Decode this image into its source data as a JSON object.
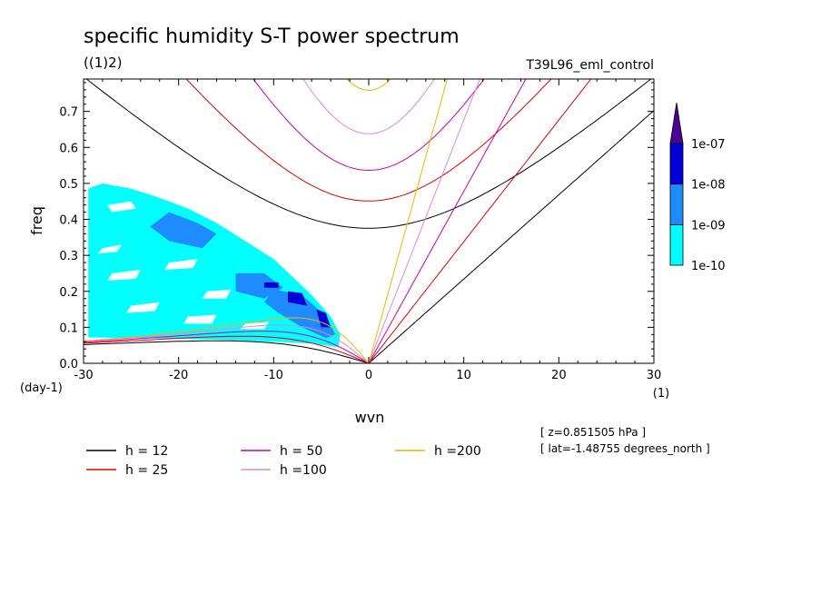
{
  "chart_data": {
    "type": "heatmap",
    "title": "specific humidity S-T power spectrum",
    "subtitle_left": "((1)2)",
    "subtitle_right": "T39L96_eml_control",
    "xlabel": "wvn",
    "ylabel": "freq",
    "x_unit": "(1)",
    "y_unit": "(day-1)",
    "xlim": [
      -30,
      30
    ],
    "ylim": [
      0,
      0.79
    ],
    "xticks": [
      -30,
      -20,
      -10,
      0,
      10,
      20,
      30
    ],
    "yticks": [
      0.0,
      0.1,
      0.2,
      0.3,
      0.4,
      0.5,
      0.6,
      0.7
    ],
    "xtick_labels": [
      "-30",
      "-20",
      "-10",
      "0",
      "10",
      "20",
      "30"
    ],
    "ytick_labels": [
      "0.0",
      "0.1",
      "0.2",
      "0.3",
      "0.4",
      "0.5",
      "0.6",
      "0.7"
    ],
    "colorbar": {
      "levels": [
        1e-10,
        1e-09,
        1e-08,
        1e-07
      ],
      "labels": [
        "1e-10",
        "1e-09",
        "1e-08",
        "1e-07"
      ],
      "colors": [
        "#00ffff",
        "#1e8cff",
        "#0000d8",
        "#4b0096"
      ]
    },
    "spectrum_regions": [
      {
        "level": 0,
        "polygon": [
          [
            -29.5,
            0.485
          ],
          [
            -28,
            0.5
          ],
          [
            -25,
            0.485
          ],
          [
            -22,
            0.46
          ],
          [
            -19,
            0.43
          ],
          [
            -16,
            0.39
          ],
          [
            -13,
            0.34
          ],
          [
            -10,
            0.29
          ],
          [
            -8,
            0.24
          ],
          [
            -6,
            0.19
          ],
          [
            -4,
            0.13
          ],
          [
            -3,
            0.08
          ],
          [
            -3.2,
            0.045
          ],
          [
            -6,
            0.055
          ],
          [
            -10,
            0.06
          ],
          [
            -15,
            0.065
          ],
          [
            -20,
            0.068
          ],
          [
            -25,
            0.07
          ],
          [
            -29.5,
            0.072
          ]
        ]
      },
      {
        "level": 1,
        "polygon": [
          [
            -21,
            0.42
          ],
          [
            -18,
            0.39
          ],
          [
            -16,
            0.36
          ],
          [
            -17.5,
            0.32
          ],
          [
            -21,
            0.34
          ],
          [
            -23,
            0.38
          ]
        ]
      },
      {
        "level": 1,
        "polygon": [
          [
            -14,
            0.25
          ],
          [
            -11,
            0.25
          ],
          [
            -9,
            0.21
          ],
          [
            -11,
            0.18
          ],
          [
            -14,
            0.2
          ]
        ]
      },
      {
        "level": 1,
        "polygon": [
          [
            -10,
            0.205
          ],
          [
            -7,
            0.19
          ],
          [
            -4.5,
            0.13
          ],
          [
            -3.5,
            0.08
          ],
          [
            -4.5,
            0.07
          ],
          [
            -7,
            0.1
          ],
          [
            -9.5,
            0.14
          ],
          [
            -11,
            0.17
          ]
        ]
      },
      {
        "level": 2,
        "polygon": [
          [
            -11,
            0.225
          ],
          [
            -9.5,
            0.225
          ],
          [
            -9.5,
            0.21
          ],
          [
            -11,
            0.21
          ]
        ]
      },
      {
        "level": 2,
        "polygon": [
          [
            -8.5,
            0.2
          ],
          [
            -7,
            0.195
          ],
          [
            -6.5,
            0.16
          ],
          [
            -8.5,
            0.17
          ]
        ]
      },
      {
        "level": 2,
        "polygon": [
          [
            -5.5,
            0.15
          ],
          [
            -4.5,
            0.14
          ],
          [
            -4,
            0.1
          ],
          [
            -5,
            0.1
          ]
        ]
      }
    ],
    "holes": [
      {
        "polygon": [
          [
            -27.5,
            0.44
          ],
          [
            -25,
            0.45
          ],
          [
            -24.5,
            0.43
          ],
          [
            -27,
            0.42
          ]
        ]
      },
      {
        "polygon": [
          [
            -21,
            0.28
          ],
          [
            -18,
            0.29
          ],
          [
            -18.5,
            0.265
          ],
          [
            -21.5,
            0.26
          ]
        ]
      },
      {
        "polygon": [
          [
            -27,
            0.25
          ],
          [
            -24,
            0.26
          ],
          [
            -24.5,
            0.235
          ],
          [
            -27.5,
            0.23
          ]
        ]
      },
      {
        "polygon": [
          [
            -17,
            0.2
          ],
          [
            -14.5,
            0.205
          ],
          [
            -15,
            0.18
          ],
          [
            -17.5,
            0.18
          ]
        ]
      },
      {
        "polygon": [
          [
            -25,
            0.16
          ],
          [
            -22,
            0.17
          ],
          [
            -22.5,
            0.145
          ],
          [
            -25.5,
            0.14
          ]
        ]
      },
      {
        "polygon": [
          [
            -19,
            0.13
          ],
          [
            -16,
            0.135
          ],
          [
            -16.5,
            0.11
          ],
          [
            -19.5,
            0.11
          ]
        ]
      },
      {
        "polygon": [
          [
            -13,
            0.11
          ],
          [
            -10.5,
            0.115
          ],
          [
            -11,
            0.095
          ],
          [
            -13.5,
            0.095
          ]
        ]
      },
      {
        "polygon": [
          [
            -28,
            0.32
          ],
          [
            -26,
            0.33
          ],
          [
            -26.5,
            0.31
          ],
          [
            -28.5,
            0.305
          ]
        ]
      }
    ],
    "series": [
      {
        "name": "h = 12",
        "h": 12,
        "color": "#000000"
      },
      {
        "name": "h = 25",
        "h": 25,
        "color": "#dd0000"
      },
      {
        "name": "h = 50",
        "h": 50,
        "color": "#cc00aa"
      },
      {
        "name": "h =100",
        "h": 100,
        "color": "#dd88dd"
      },
      {
        "name": "h =200",
        "h": 200,
        "color": "#e8b800"
      }
    ],
    "annotations": [
      "[ z=0.851505 hPa ]",
      "[ lat=-1.48755 degrees_north ]"
    ]
  }
}
